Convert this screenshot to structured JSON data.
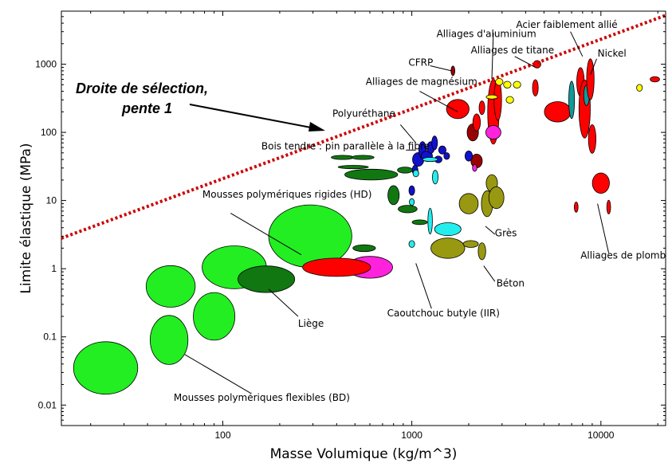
{
  "chart_data": {
    "type": "scatter",
    "title": "",
    "xlabel": "Masse Volumique (kg/m^3)",
    "ylabel": "Limite élastique (MPa)",
    "x_scale": "log",
    "y_scale": "log",
    "xlim": [
      14,
      22000
    ],
    "ylim": [
      0.005,
      6000
    ],
    "x_ticks": [
      {
        "value": 100,
        "label": "100"
      },
      {
        "value": 1000,
        "label": "1000"
      },
      {
        "value": 10000,
        "label": "10000"
      }
    ],
    "y_ticks": [
      {
        "value": 0.01,
        "label": "0.01"
      },
      {
        "value": 0.1,
        "label": "0.1"
      },
      {
        "value": 1,
        "label": "1"
      },
      {
        "value": 10,
        "label": "10"
      },
      {
        "value": 100,
        "label": "100"
      },
      {
        "value": 1000,
        "label": "1000"
      }
    ],
    "grid": false,
    "colors": {
      "light_green": "#22ee22",
      "dark_green": "#117711",
      "red": "#ff0000",
      "dark_red": "#990000",
      "magenta": "#ff22dd",
      "blue": "#1111cc",
      "cyan": "#22eeee",
      "teal": "#119999",
      "yellow": "#ffff00",
      "olive": "#999911",
      "selection_line": "#cc0000"
    },
    "selection_line": {
      "label_line1": "Droite de sélection,",
      "label_line2": "pente 1",
      "slope": 1,
      "points": [
        [
          14,
          2.8
        ],
        [
          22000,
          5200
        ]
      ]
    },
    "bubbles": [
      {
        "x": 24,
        "y": 0.035,
        "rx_dex": 0.17,
        "ry_dex": 0.77,
        "color": "light_green"
      },
      {
        "x": 52,
        "y": 0.09,
        "rx_dex": 0.1,
        "ry_dex": 0.72,
        "color": "light_green"
      },
      {
        "x": 53,
        "y": 0.55,
        "rx_dex": 0.13,
        "ry_dex": 0.61,
        "color": "light_green"
      },
      {
        "x": 90,
        "y": 0.2,
        "rx_dex": 0.11,
        "ry_dex": 0.7,
        "color": "light_green"
      },
      {
        "x": 115,
        "y": 1.05,
        "rx_dex": 0.17,
        "ry_dex": 0.63,
        "color": "light_green"
      },
      {
        "x": 290,
        "y": 3.0,
        "rx_dex": 0.22,
        "ry_dex": 0.92,
        "color": "light_green"
      },
      {
        "x": 170,
        "y": 0.7,
        "rx_dex": 0.15,
        "ry_dex": 0.39,
        "color": "dark_green"
      },
      {
        "x": 600,
        "y": 1.05,
        "rx_dex": 0.12,
        "ry_dex": 0.32,
        "color": "magenta"
      },
      {
        "x": 400,
        "y": 1.05,
        "rx_dex": 0.18,
        "ry_dex": 0.27,
        "color": "red"
      },
      {
        "x": 560,
        "y": 2.0,
        "rx_dex": 0.06,
        "ry_dex": 0.1,
        "color": "dark_green"
      },
      {
        "x": 430,
        "y": 43,
        "rx_dex": 0.06,
        "ry_dex": 0.06,
        "color": "dark_green"
      },
      {
        "x": 550,
        "y": 43,
        "rx_dex": 0.06,
        "ry_dex": 0.06,
        "color": "dark_green"
      },
      {
        "x": 490,
        "y": 31,
        "rx_dex": 0.08,
        "ry_dex": 0.05,
        "color": "dark_green"
      },
      {
        "x": 610,
        "y": 24,
        "rx_dex": 0.14,
        "ry_dex": 0.16,
        "color": "dark_green"
      },
      {
        "x": 800,
        "y": 12,
        "rx_dex": 0.03,
        "ry_dex": 0.28,
        "color": "dark_green"
      },
      {
        "x": 950,
        "y": 7.5,
        "rx_dex": 0.05,
        "ry_dex": 0.11,
        "color": "dark_green"
      },
      {
        "x": 1100,
        "y": 4.8,
        "rx_dex": 0.04,
        "ry_dex": 0.07,
        "color": "dark_green"
      },
      {
        "x": 920,
        "y": 28,
        "rx_dex": 0.04,
        "ry_dex": 0.09,
        "color": "dark_green"
      },
      {
        "x": 1000,
        "y": 14,
        "rx_dex": 0.015,
        "ry_dex": 0.14,
        "color": "blue"
      },
      {
        "x": 1040,
        "y": 28,
        "rx_dex": 0.015,
        "ry_dex": 0.14,
        "color": "blue"
      },
      {
        "x": 1080,
        "y": 40,
        "rx_dex": 0.03,
        "ry_dex": 0.2,
        "color": "blue"
      },
      {
        "x": 1140,
        "y": 55,
        "rx_dex": 0.02,
        "ry_dex": 0.25,
        "color": "blue"
      },
      {
        "x": 1200,
        "y": 45,
        "rx_dex": 0.03,
        "ry_dex": 0.15,
        "color": "blue"
      },
      {
        "x": 1260,
        "y": 60,
        "rx_dex": 0.02,
        "ry_dex": 0.17,
        "color": "blue"
      },
      {
        "x": 1320,
        "y": 70,
        "rx_dex": 0.015,
        "ry_dex": 0.2,
        "color": "blue"
      },
      {
        "x": 1380,
        "y": 40,
        "rx_dex": 0.02,
        "ry_dex": 0.1,
        "color": "blue"
      },
      {
        "x": 1450,
        "y": 55,
        "rx_dex": 0.02,
        "ry_dex": 0.12,
        "color": "blue"
      },
      {
        "x": 1530,
        "y": 45,
        "rx_dex": 0.015,
        "ry_dex": 0.1,
        "color": "blue"
      },
      {
        "x": 1250,
        "y": 40,
        "rx_dex": 0.04,
        "ry_dex": 0.06,
        "color": "cyan"
      },
      {
        "x": 1330,
        "y": 22,
        "rx_dex": 0.015,
        "ry_dex": 0.2,
        "color": "cyan"
      },
      {
        "x": 1250,
        "y": 5,
        "rx_dex": 0.012,
        "ry_dex": 0.38,
        "color": "cyan"
      },
      {
        "x": 1000,
        "y": 2.3,
        "rx_dex": 0.015,
        "ry_dex": 0.1,
        "color": "cyan"
      },
      {
        "x": 1000,
        "y": 9.5,
        "rx_dex": 0.013,
        "ry_dex": 0.1,
        "color": "cyan"
      },
      {
        "x": 1050,
        "y": 25,
        "rx_dex": 0.015,
        "ry_dex": 0.1,
        "color": "cyan"
      },
      {
        "x": 1550,
        "y": 3.8,
        "rx_dex": 0.07,
        "ry_dex": 0.19,
        "color": "cyan"
      },
      {
        "x": 1550,
        "y": 2.0,
        "rx_dex": 0.09,
        "ry_dex": 0.3,
        "color": "olive"
      },
      {
        "x": 2000,
        "y": 9,
        "rx_dex": 0.05,
        "ry_dex": 0.3,
        "color": "olive"
      },
      {
        "x": 2050,
        "y": 2.3,
        "rx_dex": 0.04,
        "ry_dex": 0.1,
        "color": "olive"
      },
      {
        "x": 2350,
        "y": 1.8,
        "rx_dex": 0.02,
        "ry_dex": 0.25,
        "color": "olive"
      },
      {
        "x": 2500,
        "y": 9,
        "rx_dex": 0.03,
        "ry_dex": 0.38,
        "color": "olive"
      },
      {
        "x": 2650,
        "y": 18,
        "rx_dex": 0.03,
        "ry_dex": 0.25,
        "color": "olive"
      },
      {
        "x": 2800,
        "y": 11,
        "rx_dex": 0.04,
        "ry_dex": 0.32,
        "color": "olive"
      },
      {
        "x": 1650,
        "y": 800,
        "rx_dex": 0.01,
        "ry_dex": 0.14,
        "color": "dark_red"
      },
      {
        "x": 2100,
        "y": 100,
        "rx_dex": 0.03,
        "ry_dex": 0.25,
        "color": "dark_red"
      },
      {
        "x": 2200,
        "y": 38,
        "rx_dex": 0.03,
        "ry_dex": 0.2,
        "color": "dark_red"
      },
      {
        "x": 2000,
        "y": 45,
        "rx_dex": 0.02,
        "ry_dex": 0.15,
        "color": "blue"
      },
      {
        "x": 2150,
        "y": 30,
        "rx_dex": 0.012,
        "ry_dex": 0.1,
        "color": "magenta"
      },
      {
        "x": 1750,
        "y": 220,
        "rx_dex": 0.06,
        "ry_dex": 0.28,
        "color": "red"
      },
      {
        "x": 2200,
        "y": 140,
        "rx_dex": 0.02,
        "ry_dex": 0.25,
        "color": "red"
      },
      {
        "x": 2350,
        "y": 230,
        "rx_dex": 0.015,
        "ry_dex": 0.2,
        "color": "red"
      },
      {
        "x": 2700,
        "y": 200,
        "rx_dex": 0.03,
        "ry_dex": 0.95,
        "color": "red"
      },
      {
        "x": 2850,
        "y": 300,
        "rx_dex": 0.02,
        "ry_dex": 0.6,
        "color": "red"
      },
      {
        "x": 2700,
        "y": 100,
        "rx_dex": 0.04,
        "ry_dex": 0.2,
        "color": "magenta"
      },
      {
        "x": 2650,
        "y": 330,
        "rx_dex": 0.03,
        "ry_dex": 0.06,
        "color": "yellow"
      },
      {
        "x": 2900,
        "y": 550,
        "rx_dex": 0.02,
        "ry_dex": 0.1,
        "color": "yellow"
      },
      {
        "x": 3200,
        "y": 500,
        "rx_dex": 0.02,
        "ry_dex": 0.1,
        "color": "yellow"
      },
      {
        "x": 3300,
        "y": 300,
        "rx_dex": 0.02,
        "ry_dex": 0.1,
        "color": "yellow"
      },
      {
        "x": 3600,
        "y": 500,
        "rx_dex": 0.02,
        "ry_dex": 0.1,
        "color": "yellow"
      },
      {
        "x": 4500,
        "y": 450,
        "rx_dex": 0.015,
        "ry_dex": 0.24,
        "color": "red"
      },
      {
        "x": 4600,
        "y": 1000,
        "rx_dex": 0.02,
        "ry_dex": 0.11,
        "color": "red"
      },
      {
        "x": 5900,
        "y": 200,
        "rx_dex": 0.07,
        "ry_dex": 0.3,
        "color": "red"
      },
      {
        "x": 7000,
        "y": 300,
        "rx_dex": 0.015,
        "ry_dex": 0.55,
        "color": "teal"
      },
      {
        "x": 7800,
        "y": 550,
        "rx_dex": 0.02,
        "ry_dex": 0.42,
        "color": "red"
      },
      {
        "x": 8200,
        "y": 220,
        "rx_dex": 0.03,
        "ry_dex": 0.85,
        "color": "red"
      },
      {
        "x": 8400,
        "y": 350,
        "rx_dex": 0.015,
        "ry_dex": 0.3,
        "color": "teal"
      },
      {
        "x": 8800,
        "y": 600,
        "rx_dex": 0.02,
        "ry_dex": 0.6,
        "color": "red"
      },
      {
        "x": 9000,
        "y": 80,
        "rx_dex": 0.02,
        "ry_dex": 0.42,
        "color": "red"
      },
      {
        "x": 7400,
        "y": 8,
        "rx_dex": 0.01,
        "ry_dex": 0.15,
        "color": "red"
      },
      {
        "x": 10000,
        "y": 18,
        "rx_dex": 0.045,
        "ry_dex": 0.3,
        "color": "red"
      },
      {
        "x": 11000,
        "y": 8,
        "rx_dex": 0.01,
        "ry_dex": 0.2,
        "color": "red"
      },
      {
        "x": 16000,
        "y": 450,
        "rx_dex": 0.015,
        "ry_dex": 0.1,
        "color": "yellow"
      },
      {
        "x": 19300,
        "y": 600,
        "rx_dex": 0.025,
        "ry_dex": 0.08,
        "color": "red"
      }
    ],
    "annotations": [
      {
        "text": "Alliages d'aluminium",
        "label_x": 1350,
        "label_y": 2500,
        "anchor": "start",
        "line_from": [
          2700,
          2900
        ],
        "line_to": [
          2650,
          600
        ]
      },
      {
        "text": "Acier faiblement allié",
        "label_x": 6600,
        "label_y": 3400,
        "anchor": "middle",
        "line_from": [
          6900,
          3000
        ],
        "line_to": [
          8000,
          1300
        ]
      },
      {
        "text": "Alliages de titane",
        "label_x": 2050,
        "label_y": 1450,
        "anchor": "start",
        "line_from": [
          3500,
          1300
        ],
        "line_to": [
          4500,
          900
        ]
      },
      {
        "text": "Nickel",
        "label_x": 9600,
        "label_y": 1300,
        "anchor": "start",
        "line_from": [
          9500,
          1200
        ],
        "line_to": [
          8800,
          700
        ]
      },
      {
        "text": "CFRP",
        "label_x": 960,
        "label_y": 950,
        "anchor": "start",
        "line_from": [
          1250,
          950
        ],
        "line_to": [
          1620,
          800
        ]
      },
      {
        "text": "Alliages de magnésium",
        "label_x": 570,
        "label_y": 500,
        "anchor": "start",
        "line_from": [
          1100,
          400
        ],
        "line_to": [
          1750,
          200
        ]
      },
      {
        "text": "Polyuréthane",
        "label_x": 380,
        "label_y": 170,
        "anchor": "start",
        "line_from": [
          870,
          130
        ],
        "line_to": [
          1050,
          70
        ]
      },
      {
        "text": "Bois tendre : pin parallèle à la fibre",
        "label_x": 160,
        "label_y": 56,
        "anchor": "start",
        "line_from": [
          930,
          55
        ],
        "line_to": [
          1050,
          55
        ]
      },
      {
        "text": "Mousses polymériques rigides (HD)",
        "label_x": 78,
        "label_y": 11,
        "anchor": "start",
        "line_from": [
          110,
          6.5
        ],
        "line_to": [
          260,
          1.6
        ]
      },
      {
        "text": "Liège",
        "label_x": 250,
        "label_y": 0.14,
        "anchor": "start",
        "line_from": [
          250,
          0.2
        ],
        "line_to": [
          175,
          0.5
        ]
      },
      {
        "text": "Caoutchouc butyle (IIR)",
        "label_x": 740,
        "label_y": 0.2,
        "anchor": "start",
        "line_from": [
          1270,
          0.26
        ],
        "line_to": [
          1050,
          1.2
        ]
      },
      {
        "text": "Grès",
        "label_x": 2750,
        "label_y": 3.0,
        "anchor": "start",
        "line_from": [
          2750,
          3.2
        ],
        "line_to": [
          2450,
          4.2
        ]
      },
      {
        "text": "Béton",
        "label_x": 2800,
        "label_y": 0.55,
        "anchor": "start",
        "line_from": [
          2750,
          0.65
        ],
        "line_to": [
          2400,
          1.1
        ]
      },
      {
        "text": "Alliages de plomb",
        "label_x": 7800,
        "label_y": 1.4,
        "anchor": "start",
        "line_from": [
          11000,
          1.7
        ],
        "line_to": [
          9600,
          9
        ]
      },
      {
        "text": "Mousses polymériques flexibles (BD)",
        "label_x": 55,
        "label_y": 0.0115,
        "anchor": "start",
        "line_from": [
          140,
          0.015
        ],
        "line_to": [
          63,
          0.055
        ]
      }
    ]
  }
}
